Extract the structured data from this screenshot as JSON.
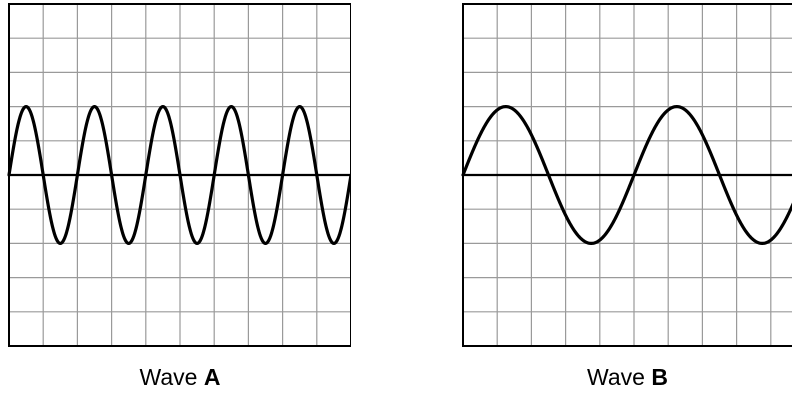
{
  "waves": [
    {
      "id": "A",
      "label_prefix": "Wave",
      "label_letter": "A",
      "grid": {
        "columns": 10,
        "rows": 10
      },
      "amplitude_squares": 2,
      "wavelength_squares": 2,
      "phase_start": "zero-rising"
    },
    {
      "id": "B",
      "label_prefix": "Wave",
      "label_letter": "B",
      "grid": {
        "columns": 10,
        "rows": 10
      },
      "amplitude_squares": 2,
      "wavelength_squares": 5,
      "phase_start": "zero-rising"
    }
  ],
  "colors": {
    "grid": "#9a9a9a",
    "frame": "#000000",
    "wave": "#000000",
    "axis": "#000000"
  }
}
